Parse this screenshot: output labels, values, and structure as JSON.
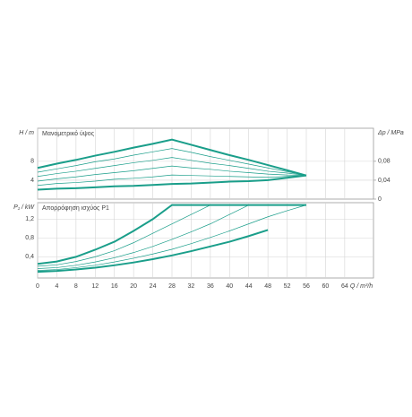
{
  "chart_data": [
    {
      "type": "line",
      "title": "Μανομετρικό ύψος",
      "ylabel": "H / m",
      "y2label": "Δp / MPa",
      "x": [
        0,
        4,
        8,
        12,
        16,
        20,
        24,
        28,
        32,
        36,
        40,
        44,
        48,
        52,
        56
      ],
      "xlim": [
        0,
        70
      ],
      "xticks": [
        0,
        4,
        8,
        12,
        16,
        20,
        24,
        28,
        32,
        36,
        40,
        44,
        48,
        52,
        56,
        60,
        64
      ],
      "ylim": [
        0,
        15
      ],
      "yticks": [
        4,
        8
      ],
      "y2lim": [
        0,
        0.15
      ],
      "y2ticks": [
        0,
        {
          "value": 0.04,
          "label": "0,04"
        },
        {
          "value": 0.08,
          "label": "0,08"
        }
      ],
      "grid": true,
      "series": [
        {
          "color": "#1a9e8a",
          "line_width": 2,
          "values": [
            6.6,
            7.5,
            8.3,
            9.2,
            10.0,
            10.9,
            11.7,
            12.6,
            11.5,
            10.4,
            9.3,
            8.3,
            7.2,
            6.1,
            5.0
          ]
        },
        {
          "color": "#1a9e8a",
          "line_width": 2,
          "values": [
            2.0,
            2.2,
            2.3,
            2.5,
            2.7,
            2.8,
            3.0,
            3.2,
            3.3,
            3.5,
            3.7,
            3.8,
            4.0,
            4.5,
            5.0
          ]
        },
        {
          "color": "#1a9e8a",
          "line_width": 0.7,
          "values": [
            2.9,
            3.3,
            3.5,
            3.8,
            4.2,
            4.4,
            4.7,
            5.1,
            5.0,
            4.9,
            4.8,
            4.7,
            4.6,
            4.8,
            5.0
          ]
        },
        {
          "color": "#1a9e8a",
          "line_width": 0.7,
          "values": [
            3.8,
            4.3,
            4.7,
            5.2,
            5.6,
            6.0,
            6.5,
            7.0,
            6.6,
            6.3,
            5.9,
            5.6,
            5.3,
            5.1,
            5.0
          ]
        },
        {
          "color": "#1a9e8a",
          "line_width": 0.7,
          "values": [
            4.8,
            5.4,
            5.9,
            6.5,
            7.1,
            7.7,
            8.2,
            8.8,
            8.2,
            7.6,
            7.1,
            6.5,
            5.9,
            5.5,
            5.0
          ]
        },
        {
          "color": "#1a9e8a",
          "line_width": 0.7,
          "values": [
            5.7,
            6.4,
            7.1,
            7.9,
            8.5,
            9.3,
            10.0,
            10.7,
            9.9,
            9.0,
            8.2,
            7.4,
            6.6,
            5.8,
            5.0
          ]
        }
      ]
    },
    {
      "type": "line",
      "title": "Απορρόφηση ισχύος P1",
      "ylabel": "P₁ / kW",
      "xlabel": "Q / m³/h",
      "x": [
        0,
        4,
        8,
        12,
        16,
        20,
        24,
        28,
        32,
        36,
        40,
        44,
        48,
        52,
        56
      ],
      "xlim": [
        0,
        70
      ],
      "xticks": [
        0,
        4,
        8,
        12,
        16,
        20,
        24,
        28,
        32,
        36,
        40,
        44,
        48,
        52,
        56,
        60,
        64
      ],
      "ylim": [
        -0.05,
        1.55
      ],
      "yticks": [
        {
          "value": 0.4,
          "label": "0,4"
        },
        {
          "value": 0.8,
          "label": "0,8"
        },
        {
          "value": 1.2,
          "label": "1,2"
        }
      ],
      "grid": true,
      "series": [
        {
          "color": "#1a9e8a",
          "line_width": 2,
          "values": [
            0.25,
            0.3,
            0.4,
            0.55,
            0.72,
            0.95,
            1.2,
            1.5,
            1.5,
            1.5,
            1.5,
            1.5,
            1.5,
            1.5,
            1.5
          ]
        },
        {
          "color": "#1a9e8a",
          "line_width": 2,
          "values": [
            0.08,
            0.1,
            0.13,
            0.17,
            0.22,
            0.28,
            0.35,
            0.43,
            0.52,
            0.62,
            0.72,
            0.84,
            0.97,
            null,
            null
          ]
        },
        {
          "color": "#1a9e8a",
          "line_width": 0.7,
          "values": [
            0.2,
            0.23,
            0.3,
            0.4,
            0.53,
            0.7,
            0.9,
            1.1,
            1.3,
            1.5,
            null,
            null,
            null,
            null,
            null
          ]
        },
        {
          "color": "#1a9e8a",
          "line_width": 0.7,
          "values": [
            0.15,
            0.17,
            0.22,
            0.29,
            0.38,
            0.49,
            0.62,
            0.77,
            0.93,
            1.1,
            1.3,
            1.5,
            null,
            null,
            null
          ]
        },
        {
          "color": "#1a9e8a",
          "line_width": 0.7,
          "values": [
            0.11,
            0.13,
            0.17,
            0.22,
            0.29,
            0.37,
            0.46,
            0.56,
            0.68,
            0.81,
            0.95,
            1.1,
            1.25,
            1.38,
            1.5
          ]
        }
      ]
    }
  ]
}
